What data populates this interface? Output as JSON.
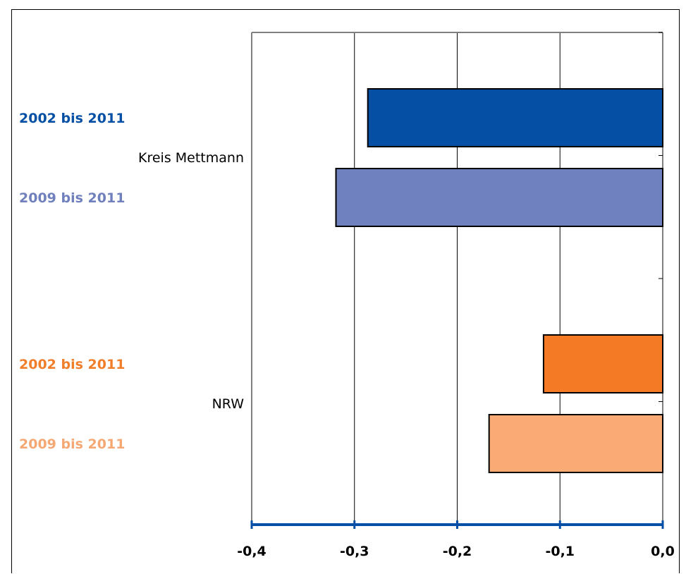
{
  "chart_data": {
    "type": "bar",
    "orientation": "horizontal",
    "xlim": [
      -0.4,
      0.0
    ],
    "x_ticks": [
      "-0,4",
      "-0,3",
      "-0,2",
      "-0,1",
      "0,0"
    ],
    "x_tick_values": [
      -0.4,
      -0.3,
      -0.2,
      -0.1,
      0.0
    ],
    "grid": true,
    "groups": [
      {
        "name": "Kreis Mettmann",
        "bars": [
          {
            "label": "2002 bis 2011",
            "value": -0.287,
            "color": "#0550A5",
            "label_color": "#0550A5"
          },
          {
            "label": "2009 bis 2011",
            "value": -0.318,
            "color": "#6F81BF",
            "label_color": "#7080BC"
          }
        ]
      },
      {
        "name": "NRW",
        "bars": [
          {
            "label": "2002 bis 2011",
            "value": -0.116,
            "color": "#F47A25",
            "label_color": "#F07E2A"
          },
          {
            "label": "2009 bis 2011",
            "value": -0.169,
            "color": "#F9AA75",
            "label_color": "#F5A874"
          }
        ]
      }
    ],
    "axis_color": "#0550A5"
  }
}
